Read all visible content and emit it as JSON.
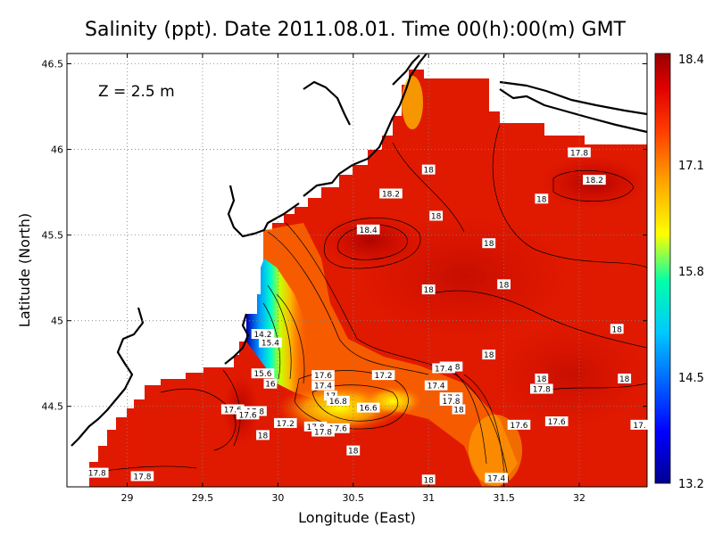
{
  "map": {
    "title": "Salinity (ppt). Date 2011.08.01. Time 00(h):00(m) GMT",
    "depth_label": "Z = 2.5 m",
    "xlabel": "Longitude (East)",
    "ylabel": "Latitude (North)",
    "colors": {
      "land": "#ffffff",
      "coast": "#000000",
      "sea_ramp": [
        "#00008f",
        "#0000ff",
        "#00c8ff",
        "#00ffaa",
        "#ffff00",
        "#ffa500",
        "#ff3c00",
        "#e10000",
        "#960000"
      ]
    }
  },
  "chart_data": {
    "type": "heatmap",
    "xlim": [
      28.6,
      32.45
    ],
    "ylim": [
      44.03,
      46.56
    ],
    "x_ticks": [
      {
        "value": 29,
        "label": "29"
      },
      {
        "value": 29.5,
        "label": "29.5"
      },
      {
        "value": 30,
        "label": "30"
      },
      {
        "value": 30.5,
        "label": "30.5"
      },
      {
        "value": 31,
        "label": "31"
      },
      {
        "value": 31.5,
        "label": "31.5"
      },
      {
        "value": 32,
        "label": "32"
      }
    ],
    "y_ticks": [
      {
        "value": 44.5,
        "label": "44.5"
      },
      {
        "value": 45,
        "label": "45"
      },
      {
        "value": 45.5,
        "label": "45.5"
      },
      {
        "value": 46,
        "label": "46"
      },
      {
        "value": 46.5,
        "label": "46.5"
      }
    ],
    "grid": true,
    "colorbar": {
      "min": 13.2,
      "max": 18.4,
      "labels": [
        {
          "value": 18.4,
          "label": "18.4"
        },
        {
          "value": 17.1,
          "label": "17.1"
        },
        {
          "value": 15.8,
          "label": "15.8"
        },
        {
          "value": 14.5,
          "label": "14.5"
        },
        {
          "value": 13.2,
          "label": "13.2"
        }
      ]
    },
    "contour_labels": [
      {
        "lon": 32.0,
        "lat": 45.98,
        "label": "17.8"
      },
      {
        "lon": 31.0,
        "lat": 45.88,
        "label": "18"
      },
      {
        "lon": 32.1,
        "lat": 45.82,
        "label": "18.2"
      },
      {
        "lon": 30.75,
        "lat": 45.74,
        "label": "18.2"
      },
      {
        "lon": 31.75,
        "lat": 45.71,
        "label": "18"
      },
      {
        "lon": 31.05,
        "lat": 45.61,
        "label": "18"
      },
      {
        "lon": 30.6,
        "lat": 45.53,
        "label": "18.4"
      },
      {
        "lon": 31.4,
        "lat": 45.45,
        "label": "18"
      },
      {
        "lon": 31.5,
        "lat": 45.21,
        "label": "18"
      },
      {
        "lon": 31.0,
        "lat": 45.18,
        "label": "18"
      },
      {
        "lon": 32.25,
        "lat": 44.95,
        "label": "18"
      },
      {
        "lon": 31.4,
        "lat": 44.8,
        "label": "18"
      },
      {
        "lon": 29.9,
        "lat": 44.92,
        "label": "14.2"
      },
      {
        "lon": 29.95,
        "lat": 44.87,
        "label": "15.4"
      },
      {
        "lon": 31.15,
        "lat": 44.73,
        "label": "17.8"
      },
      {
        "lon": 31.1,
        "lat": 44.72,
        "label": "17.4"
      },
      {
        "lon": 30.3,
        "lat": 44.68,
        "label": "17.6"
      },
      {
        "lon": 30.7,
        "lat": 44.68,
        "label": "17.2"
      },
      {
        "lon": 31.75,
        "lat": 44.66,
        "label": "18"
      },
      {
        "lon": 32.3,
        "lat": 44.66,
        "label": "18"
      },
      {
        "lon": 29.9,
        "lat": 44.69,
        "label": "15.6"
      },
      {
        "lon": 29.95,
        "lat": 44.63,
        "label": "16"
      },
      {
        "lon": 30.3,
        "lat": 44.62,
        "label": "17.4"
      },
      {
        "lon": 31.05,
        "lat": 44.62,
        "label": "17.4"
      },
      {
        "lon": 31.75,
        "lat": 44.6,
        "label": "17.8"
      },
      {
        "lon": 30.35,
        "lat": 44.56,
        "label": "17"
      },
      {
        "lon": 30.4,
        "lat": 44.53,
        "label": "16.8"
      },
      {
        "lon": 31.15,
        "lat": 44.55,
        "label": "17.8"
      },
      {
        "lon": 31.15,
        "lat": 44.53,
        "label": "17.8"
      },
      {
        "lon": 30.6,
        "lat": 44.49,
        "label": "16.6"
      },
      {
        "lon": 31.2,
        "lat": 44.48,
        "label": "18"
      },
      {
        "lon": 29.7,
        "lat": 44.48,
        "label": "17.6"
      },
      {
        "lon": 29.85,
        "lat": 44.47,
        "label": "17.8"
      },
      {
        "lon": 29.8,
        "lat": 44.45,
        "label": "17.6"
      },
      {
        "lon": 30.05,
        "lat": 44.4,
        "label": "17.2"
      },
      {
        "lon": 30.25,
        "lat": 44.38,
        "label": "17.8"
      },
      {
        "lon": 30.4,
        "lat": 44.37,
        "label": "17.6"
      },
      {
        "lon": 29.9,
        "lat": 44.33,
        "label": "18"
      },
      {
        "lon": 30.3,
        "lat": 44.35,
        "label": "17.8"
      },
      {
        "lon": 31.6,
        "lat": 44.39,
        "label": "17.6"
      },
      {
        "lon": 31.85,
        "lat": 44.41,
        "label": "17.6"
      },
      {
        "lon": 32.4,
        "lat": 44.39,
        "label": "17."
      },
      {
        "lon": 30.5,
        "lat": 44.24,
        "label": "18"
      },
      {
        "lon": 28.8,
        "lat": 44.11,
        "label": "17.8"
      },
      {
        "lon": 29.1,
        "lat": 44.09,
        "label": "17.8"
      },
      {
        "lon": 31.0,
        "lat": 44.07,
        "label": "18"
      },
      {
        "lon": 31.45,
        "lat": 44.08,
        "label": "17.4"
      }
    ]
  }
}
